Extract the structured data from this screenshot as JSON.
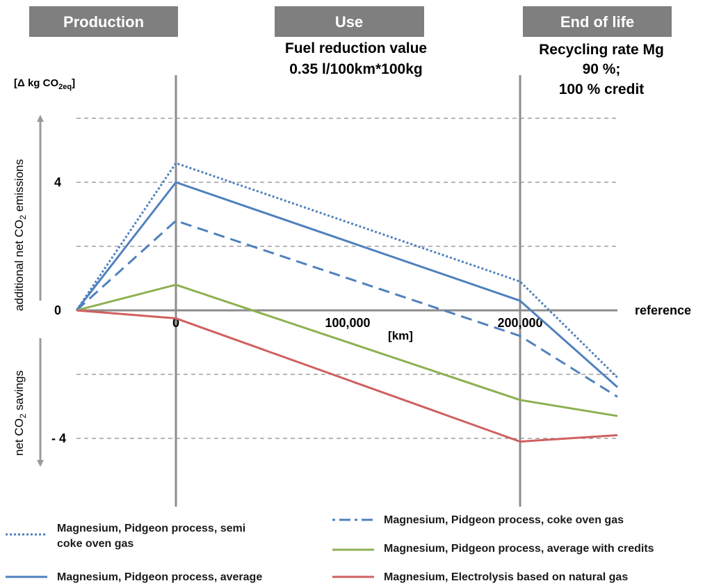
{
  "phases": {
    "production": "Production",
    "use": "Use",
    "end_of_life": "End of life"
  },
  "use_info": {
    "line1": "Fuel reduction value",
    "line2": "0.35  l/100km*100kg"
  },
  "eol_info": {
    "line1": "Recycling rate Mg",
    "line2": "90 %;",
    "line3": "100 %  credit"
  },
  "labels": {
    "unit": "[Δ kg CO",
    "unit_sub": "2eq",
    "unit_close": "]",
    "up_prefix": "additional net CO",
    "up_sub": "2",
    "up_suffix": " emissions",
    "down_prefix": "net CO",
    "down_sub": "2",
    "down_suffix": " savings",
    "reference": "reference",
    "x_unit": "[km]"
  },
  "chart_data": {
    "type": "line",
    "xlabel": "[km]",
    "ylabel": "[Δ kg CO2eq]",
    "x_ticks": [
      "0",
      "100,000",
      "200,000"
    ],
    "y_ticks": [
      "4",
      "0",
      "- 4"
    ],
    "x_phase_positions": [
      "start",
      "0",
      "100,000",
      "200,000",
      "end of life"
    ],
    "ylim": [
      -6,
      6
    ],
    "grid": "horizontal dashed",
    "legend_position": "bottom",
    "series": [
      {
        "name": "Magnesium, Pidgeon process, semi coke oven gas",
        "style": "dotted",
        "color": "#4f81bd",
        "values": [
          0,
          4.6,
          null,
          0.9,
          -2.1
        ]
      },
      {
        "name": "Magnesium, Pidgeon process, average",
        "style": "solid",
        "color": "#4f81bd",
        "values": [
          0,
          4.0,
          null,
          0.3,
          -2.4
        ]
      },
      {
        "name": "Magnesium, Pidgeon process, coke oven gas",
        "style": "dashed",
        "color": "#4f81bd",
        "values": [
          0,
          2.8,
          null,
          -0.8,
          -2.7
        ]
      },
      {
        "name": "Magnesium, Pidgeon process, average with credits",
        "style": "solid",
        "color": "#8db050",
        "values": [
          0,
          0.8,
          null,
          -2.8,
          -3.3
        ]
      },
      {
        "name": "Magnesium, Electrolysis based on natural gas",
        "style": "solid",
        "color": "#d06060",
        "values": [
          0,
          -0.25,
          null,
          -4.1,
          -3.9
        ]
      }
    ]
  },
  "legend": [
    {
      "line1": "Magnesium, Pidgeon process, semi",
      "line2": "coke oven gas"
    },
    {
      "line1": "Magnesium, Pidgeon process, average",
      "line2": ""
    },
    {
      "line1": "Magnesium, Pidgeon process, coke oven gas",
      "line2": ""
    },
    {
      "line1": "Magnesium, Pidgeon process, average with credits",
      "line2": ""
    },
    {
      "line1": "Magnesium, Electrolysis based on natural gas",
      "line2": ""
    }
  ]
}
